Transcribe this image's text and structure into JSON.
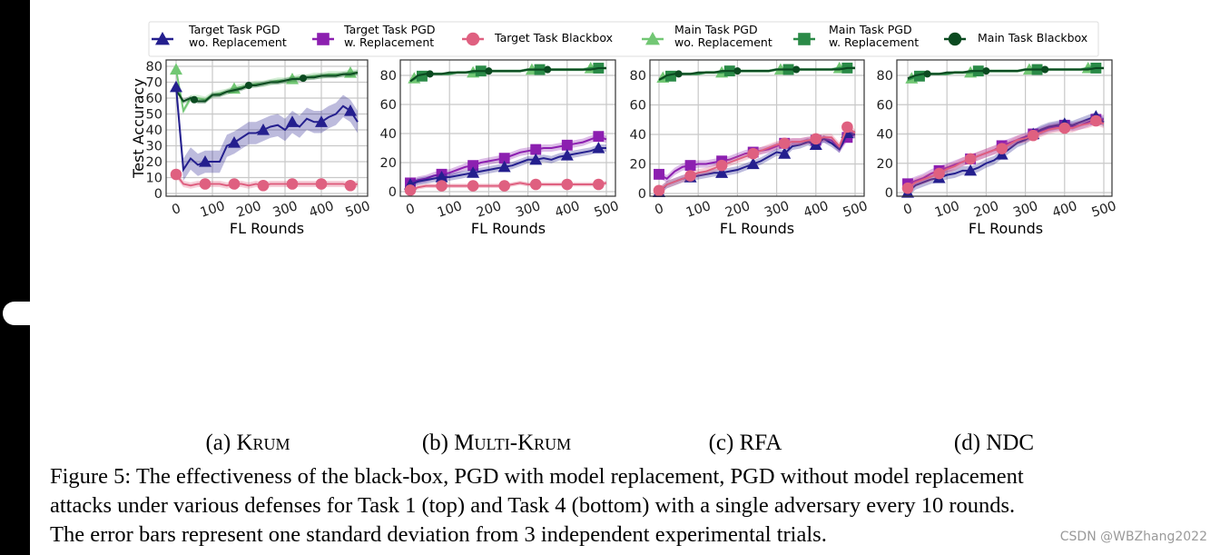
{
  "legend": [
    {
      "label1": "Target Task PGD",
      "label2": "wo. Replacement",
      "marker": "triangle",
      "color": "#241f8e"
    },
    {
      "label1": "Target Task PGD",
      "label2": "w. Replacement",
      "marker": "square",
      "color": "#8c1fb0"
    },
    {
      "label1": "Target Task Blackbox",
      "label2": "",
      "marker": "circle",
      "color": "#df6080"
    },
    {
      "label1": "Main Task PGD",
      "label2": "wo. Replacement",
      "marker": "triangle",
      "color": "#72c774"
    },
    {
      "label1": "Main Task PGD",
      "label2": "w. Replacement",
      "marker": "square",
      "color": "#2a8a47"
    },
    {
      "label1": "Main Task Blackbox",
      "label2": "",
      "marker": "circle",
      "color": "#0b4a20"
    }
  ],
  "chart_data": [
    {
      "type": "line",
      "title": "",
      "xlabel": "FL Rounds",
      "ylabel": "Test Accuracy",
      "xlim": [
        0,
        500
      ],
      "ylim": [
        0,
        80
      ],
      "grid": true,
      "xticks": [
        "0",
        "100",
        "200",
        "300",
        "400",
        "500"
      ],
      "yticks": [
        "0",
        "10",
        "20",
        "30",
        "40",
        "50",
        "60",
        "70",
        "80"
      ],
      "x": [
        0,
        20,
        40,
        60,
        80,
        100,
        120,
        140,
        160,
        180,
        200,
        220,
        240,
        260,
        280,
        300,
        320,
        340,
        360,
        380,
        400,
        420,
        440,
        460,
        480,
        500
      ],
      "series": [
        {
          "name": "Main Task PGD wo. Replacement",
          "legend": 3,
          "std": 2,
          "marker_x": [
            0,
            160,
            320,
            480
          ],
          "values": [
            78,
            52,
            60,
            60,
            59,
            62,
            63,
            64,
            66,
            67,
            68,
            69,
            69,
            70,
            71,
            71,
            72,
            73,
            73,
            74,
            74,
            75,
            75,
            75,
            76,
            76
          ]
        },
        {
          "name": "Main Task Blackbox",
          "legend": 5,
          "std": 1.5,
          "marker_x": [
            50,
            200,
            350
          ],
          "values": [
            65,
            58,
            60,
            58,
            58,
            62,
            62,
            64,
            65,
            66,
            68,
            68,
            69,
            70,
            70,
            71,
            72,
            72,
            73,
            73,
            74,
            74,
            74,
            75,
            75,
            76
          ]
        },
        {
          "name": "Target Task PGD wo. Replacement",
          "legend": 0,
          "std": 7,
          "marker_x": [
            0,
            80,
            160,
            240,
            320,
            400,
            480
          ],
          "values": [
            67,
            15,
            22,
            18,
            20,
            20,
            20,
            30,
            32,
            35,
            38,
            38,
            40,
            42,
            43,
            40,
            45,
            42,
            47,
            45,
            45,
            48,
            50,
            55,
            52,
            45
          ]
        },
        {
          "name": "Target Task Blackbox",
          "legend": 2,
          "std": 2,
          "marker_x": [
            0,
            80,
            160,
            240,
            320,
            400,
            480
          ],
          "values": [
            12,
            6,
            5,
            6,
            6,
            6,
            6,
            5,
            6,
            6,
            5,
            6,
            5,
            6,
            6,
            6,
            6,
            6,
            6,
            6,
            6,
            6,
            6,
            6,
            5,
            6
          ]
        }
      ]
    },
    {
      "type": "line",
      "title": "",
      "xlabel": "FL Rounds",
      "ylabel": "",
      "xlim": [
        0,
        500
      ],
      "ylim": [
        0,
        80
      ],
      "grid": true,
      "xticks": [
        "0",
        "100",
        "200",
        "300",
        "400",
        "500"
      ],
      "yticks": [
        "0",
        "20",
        "40",
        "60",
        "80"
      ],
      "x": [
        0,
        20,
        40,
        60,
        80,
        100,
        120,
        140,
        160,
        180,
        200,
        220,
        240,
        260,
        280,
        300,
        320,
        340,
        360,
        380,
        400,
        420,
        440,
        460,
        480,
        500
      ],
      "series": [
        {
          "name": "Main Task PGD wo. Replacement",
          "legend": 3,
          "std": 1,
          "marker_x": [
            10,
            160,
            310,
            460
          ],
          "values": [
            77,
            79,
            80,
            81,
            81,
            81,
            82,
            82,
            82,
            83,
            83,
            83,
            83,
            83,
            83,
            84,
            84,
            84,
            84,
            84,
            84,
            84,
            84,
            85,
            85,
            85
          ]
        },
        {
          "name": "Main Task PGD w. Replacement",
          "legend": 4,
          "std": 1,
          "marker_x": [
            30,
            180,
            330,
            480
          ],
          "values": [
            76,
            79,
            80,
            81,
            81,
            81,
            82,
            82,
            82,
            83,
            83,
            83,
            83,
            83,
            83,
            84,
            84,
            84,
            84,
            84,
            84,
            84,
            84,
            85,
            85,
            85
          ]
        },
        {
          "name": "Main Task Blackbox",
          "legend": 5,
          "std": 0.8,
          "marker_x": [
            50,
            200,
            350
          ],
          "values": [
            76,
            80,
            81,
            81,
            81,
            82,
            82,
            82,
            83,
            83,
            83,
            83,
            83,
            83,
            83,
            84,
            84,
            84,
            84,
            84,
            84,
            84,
            84,
            84,
            85,
            85
          ]
        },
        {
          "name": "Target Task PGD w. Replacement",
          "legend": 1,
          "std": 2.5,
          "marker_x": [
            0,
            80,
            160,
            240,
            320,
            400,
            480
          ],
          "values": [
            6,
            8,
            9,
            11,
            12,
            13,
            15,
            17,
            18,
            20,
            21,
            22,
            23,
            25,
            27,
            28,
            29,
            30,
            30,
            31,
            32,
            33,
            34,
            36,
            38,
            36
          ]
        },
        {
          "name": "Target Task PGD wo. Replacement",
          "legend": 0,
          "std": 2.5,
          "marker_x": [
            0,
            80,
            160,
            240,
            320,
            400,
            480
          ],
          "values": [
            5,
            7,
            8,
            9,
            10,
            10,
            11,
            12,
            13,
            14,
            15,
            16,
            17,
            18,
            20,
            22,
            22,
            23,
            22,
            24,
            25,
            26,
            27,
            28,
            30,
            30
          ]
        },
        {
          "name": "Target Task Blackbox",
          "legend": 2,
          "std": 1.5,
          "marker_x": [
            0,
            80,
            160,
            240,
            320,
            400,
            480
          ],
          "values": [
            1,
            3,
            4,
            4,
            4,
            4,
            4,
            4,
            4,
            4,
            4,
            4,
            4,
            5,
            6,
            5,
            5,
            5,
            5,
            5,
            5,
            5,
            5,
            5,
            5,
            6
          ]
        }
      ]
    },
    {
      "type": "line",
      "title": "",
      "xlabel": "FL Rounds",
      "ylabel": "",
      "xlim": [
        0,
        500
      ],
      "ylim": [
        0,
        80
      ],
      "grid": true,
      "xticks": [
        "0",
        "100",
        "200",
        "300",
        "400",
        "500"
      ],
      "yticks": [
        "0",
        "20",
        "40",
        "60",
        "80"
      ],
      "x": [
        0,
        20,
        40,
        60,
        80,
        100,
        120,
        140,
        160,
        180,
        200,
        220,
        240,
        260,
        280,
        300,
        320,
        340,
        360,
        380,
        400,
        420,
        440,
        460,
        480,
        500
      ],
      "series": [
        {
          "name": "Main Task PGD wo. Replacement",
          "legend": 3,
          "std": 1,
          "marker_x": [
            10,
            160,
            310,
            460
          ],
          "values": [
            78,
            79,
            80,
            81,
            81,
            81,
            82,
            82,
            82,
            83,
            83,
            83,
            83,
            83,
            83,
            84,
            84,
            84,
            84,
            84,
            84,
            84,
            84,
            85,
            85,
            85
          ]
        },
        {
          "name": "Main Task PGD w. Replacement",
          "legend": 4,
          "std": 1,
          "marker_x": [
            30,
            180,
            330,
            480
          ],
          "values": [
            77,
            79,
            80,
            81,
            81,
            81,
            82,
            82,
            82,
            83,
            83,
            83,
            83,
            83,
            83,
            84,
            84,
            84,
            84,
            84,
            84,
            84,
            84,
            85,
            85,
            85
          ]
        },
        {
          "name": "Main Task Blackbox",
          "legend": 5,
          "std": 0.8,
          "marker_x": [
            50,
            200,
            350
          ],
          "values": [
            77,
            80,
            81,
            81,
            81,
            82,
            82,
            82,
            83,
            83,
            83,
            83,
            83,
            83,
            83,
            84,
            84,
            84,
            84,
            84,
            84,
            84,
            84,
            84,
            85,
            85
          ]
        },
        {
          "name": "Target Task PGD w. Replacement",
          "legend": 1,
          "std": 2.5,
          "marker_x": [
            0,
            80,
            160,
            240,
            320,
            400,
            480
          ],
          "values": [
            13,
            10,
            15,
            18,
            19,
            20,
            20,
            21,
            22,
            23,
            25,
            27,
            28,
            29,
            30,
            32,
            34,
            35,
            35,
            36,
            36,
            37,
            36,
            30,
            38,
            40
          ]
        },
        {
          "name": "Target Task PGD wo. Replacement",
          "legend": 0,
          "std": 2.5,
          "marker_x": [
            0,
            80,
            160,
            240,
            320,
            400,
            480
          ],
          "values": [
            1,
            6,
            8,
            10,
            11,
            12,
            13,
            14,
            14,
            15,
            16,
            18,
            20,
            22,
            25,
            28,
            27,
            32,
            33,
            35,
            33,
            37,
            34,
            30,
            41,
            40
          ]
        },
        {
          "name": "Target Task Blackbox",
          "legend": 2,
          "std": 2.5,
          "marker_x": [
            0,
            80,
            160,
            240,
            320,
            400,
            480
          ],
          "values": [
            2,
            6,
            8,
            10,
            12,
            14,
            15,
            17,
            19,
            21,
            23,
            25,
            27,
            29,
            31,
            33,
            34,
            35,
            35,
            36,
            37,
            38,
            38,
            32,
            45,
            41
          ]
        }
      ]
    },
    {
      "type": "line",
      "title": "",
      "xlabel": "FL Rounds",
      "ylabel": "",
      "xlim": [
        0,
        500
      ],
      "ylim": [
        0,
        80
      ],
      "grid": true,
      "xticks": [
        "0",
        "100",
        "200",
        "300",
        "400",
        "500"
      ],
      "yticks": [
        "0",
        "20",
        "40",
        "60",
        "80"
      ],
      "x": [
        0,
        20,
        40,
        60,
        80,
        100,
        120,
        140,
        160,
        180,
        200,
        220,
        240,
        260,
        280,
        300,
        320,
        340,
        360,
        380,
        400,
        420,
        440,
        460,
        480,
        500
      ],
      "series": [
        {
          "name": "Main Task PGD wo. Replacement",
          "legend": 3,
          "std": 1,
          "marker_x": [
            10,
            160,
            310,
            460
          ],
          "values": [
            77,
            79,
            80,
            81,
            81,
            81,
            82,
            82,
            82,
            83,
            83,
            83,
            83,
            83,
            83,
            84,
            84,
            84,
            84,
            84,
            84,
            84,
            84,
            85,
            85,
            85
          ]
        },
        {
          "name": "Main Task PGD w. Replacement",
          "legend": 4,
          "std": 1,
          "marker_x": [
            30,
            180,
            330,
            480
          ],
          "values": [
            77,
            79,
            80,
            81,
            81,
            81,
            82,
            82,
            82,
            83,
            83,
            83,
            83,
            83,
            83,
            84,
            84,
            84,
            84,
            84,
            84,
            84,
            84,
            85,
            85,
            85
          ]
        },
        {
          "name": "Main Task Blackbox",
          "legend": 5,
          "std": 0.8,
          "marker_x": [
            50,
            200,
            350
          ],
          "values": [
            78,
            80,
            81,
            81,
            81,
            82,
            82,
            82,
            83,
            83,
            83,
            83,
            83,
            83,
            83,
            84,
            84,
            84,
            84,
            84,
            84,
            84,
            84,
            84,
            85,
            85
          ]
        },
        {
          "name": "Target Task PGD w. Replacement",
          "legend": 1,
          "std": 3,
          "marker_x": [
            0,
            80,
            160,
            240,
            320,
            400,
            480
          ],
          "values": [
            6,
            8,
            10,
            13,
            15,
            17,
            19,
            21,
            23,
            25,
            27,
            29,
            32,
            34,
            36,
            38,
            40,
            42,
            44,
            45,
            46,
            45,
            46,
            48,
            50,
            50
          ]
        },
        {
          "name": "Target Task PGD wo. Replacement",
          "legend": 0,
          "std": 3,
          "marker_x": [
            0,
            80,
            160,
            240,
            320,
            400,
            480
          ],
          "values": [
            0,
            5,
            7,
            9,
            10,
            12,
            13,
            15,
            15,
            17,
            20,
            22,
            26,
            30,
            34,
            36,
            40,
            43,
            45,
            46,
            47,
            46,
            48,
            50,
            52,
            48
          ]
        },
        {
          "name": "Target Task Blackbox",
          "legend": 2,
          "std": 3,
          "marker_x": [
            0,
            80,
            160,
            240,
            320,
            400,
            480
          ],
          "values": [
            3,
            7,
            9,
            11,
            13,
            16,
            18,
            21,
            23,
            25,
            27,
            29,
            30,
            33,
            36,
            37,
            39,
            41,
            43,
            44,
            44,
            44,
            46,
            47,
            49,
            47
          ]
        }
      ]
    }
  ],
  "subcaptions": [
    {
      "label": "(a)",
      "name": "Krum"
    },
    {
      "label": "(b)",
      "name": "Multi-Krum"
    },
    {
      "label": "(c)",
      "name": "RFA"
    },
    {
      "label": "(d)",
      "name": "NDC"
    }
  ],
  "caption": {
    "line1": "Figure 5: The effectiveness of the black-box, PGD with model replacement, PGD without model replacement",
    "line2": "attacks under various defenses for Task 1 (top) and Task 4 (bottom) with a single adversary every 10 rounds.",
    "line3": "The error bars represent one standard deviation from 3 independent experimental trials."
  },
  "watermark": "CSDN @WBZhang2022"
}
